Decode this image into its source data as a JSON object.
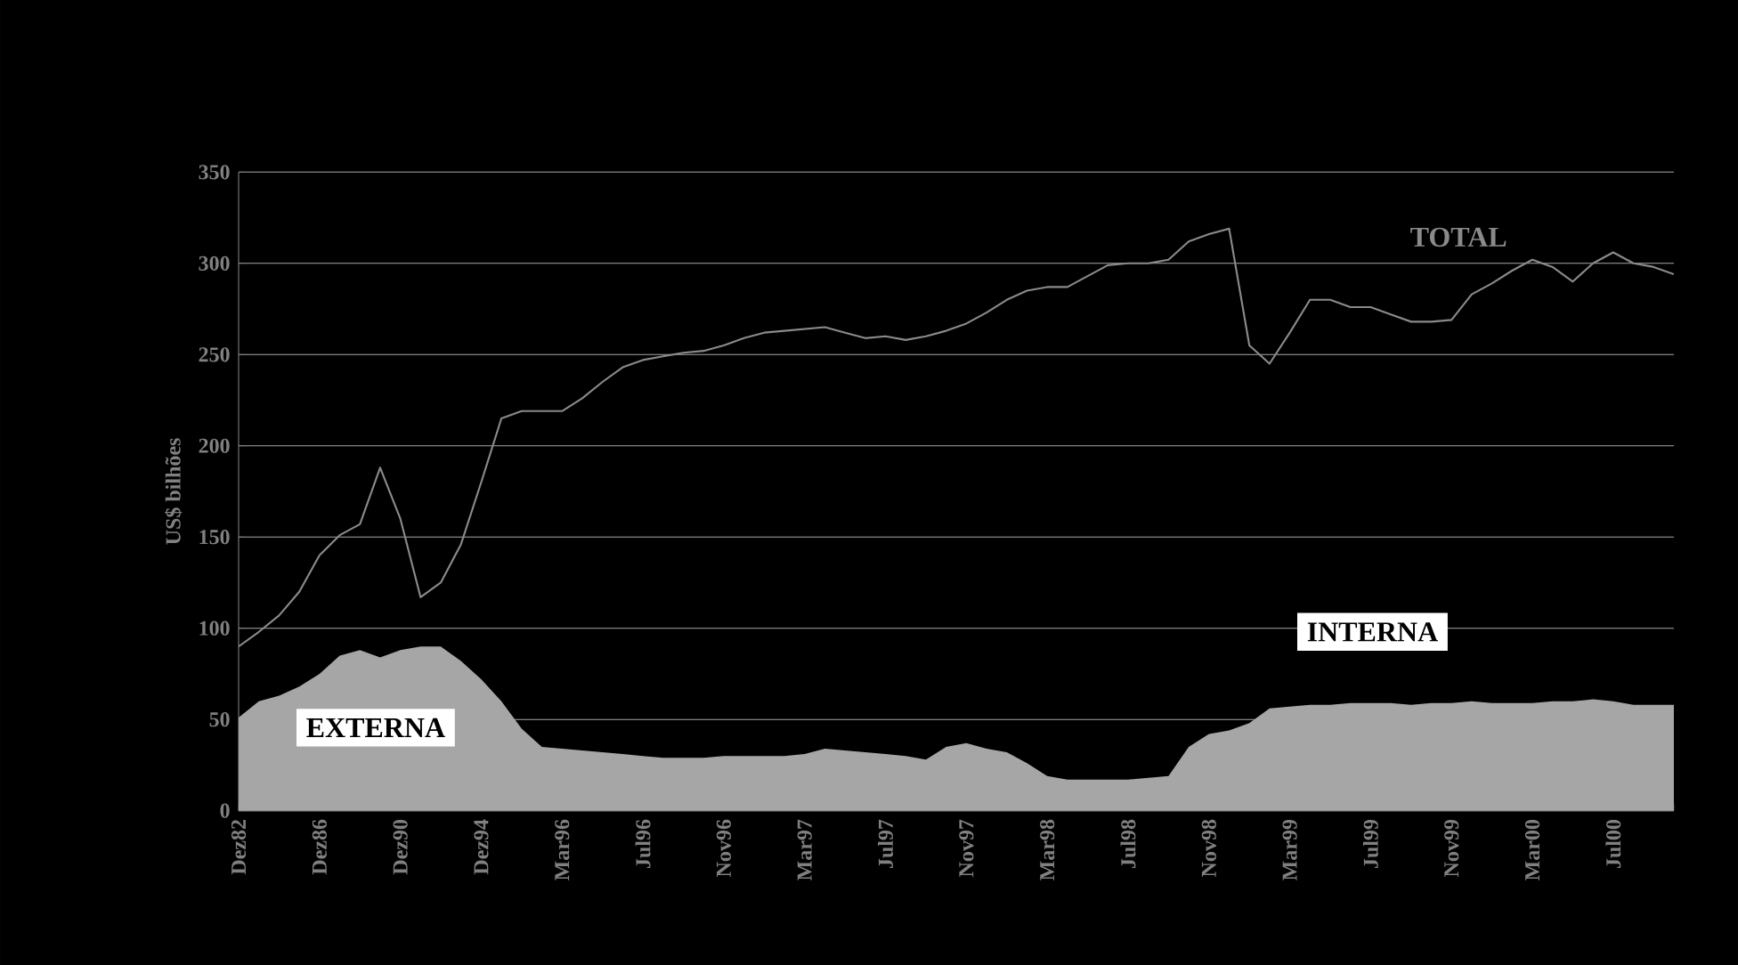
{
  "chart_data": {
    "type": "area",
    "ylabel": "US$ bilhões",
    "categories": [
      "Dez82",
      null,
      null,
      null,
      "Dez86",
      null,
      null,
      null,
      "Dez90",
      null,
      null,
      null,
      "Dez94",
      null,
      null,
      null,
      "Mar96",
      null,
      null,
      null,
      "Jul96",
      null,
      null,
      null,
      "Nov96",
      null,
      null,
      null,
      "Mar97",
      null,
      null,
      null,
      "Jul97",
      null,
      null,
      null,
      "Nov97",
      null,
      null,
      null,
      "Mar98",
      null,
      null,
      null,
      "Jul98",
      null,
      null,
      null,
      "Nov98",
      null,
      null,
      null,
      "Mar99",
      null,
      null,
      null,
      "Jul99",
      null,
      null,
      null,
      "Nov99",
      null,
      null,
      null,
      "Mar00",
      null,
      null,
      null,
      "Jul00",
      null,
      null,
      null
    ],
    "series": [
      {
        "name": "EXTERNA",
        "color": "#a6a6a6",
        "values": [
          51,
          60,
          63,
          68,
          75,
          85,
          88,
          84,
          88,
          90,
          90,
          82,
          72,
          60,
          45,
          35,
          34,
          33,
          32,
          31,
          30,
          29,
          29,
          29,
          30,
          30,
          30,
          30,
          31,
          34,
          33,
          32,
          31,
          30,
          28,
          35,
          37,
          34,
          32,
          26,
          19,
          17,
          17,
          17,
          17,
          18,
          19,
          35,
          42,
          44,
          48,
          56,
          57,
          58,
          58,
          59,
          59,
          59,
          58,
          59,
          59,
          60,
          59,
          59,
          59,
          60,
          60,
          61,
          60,
          58,
          58,
          58
        ]
      },
      {
        "name": "TOTAL",
        "type": "line",
        "color": "#8a8a8a",
        "values": [
          90,
          98,
          107,
          120,
          140,
          151,
          157,
          188,
          160,
          117,
          125,
          146,
          180,
          215,
          219,
          219,
          219,
          226,
          235,
          243,
          247,
          249,
          251,
          252,
          255,
          259,
          262,
          263,
          264,
          265,
          262,
          259,
          260,
          258,
          260,
          263,
          267,
          273,
          280,
          285,
          287,
          287,
          293,
          299,
          300,
          300,
          302,
          312,
          316,
          319,
          255,
          245,
          262,
          280,
          280,
          276,
          276,
          272,
          268,
          268,
          269,
          283,
          289,
          296,
          302,
          298,
          290,
          300,
          306,
          300,
          298,
          294
        ]
      }
    ],
    "annotations": [
      "INTERNA"
    ],
    "ylim": [
      0,
      350
    ],
    "yticks": [
      0,
      50,
      100,
      150,
      200,
      250,
      300,
      350
    ],
    "grid": "y",
    "legend": false
  }
}
